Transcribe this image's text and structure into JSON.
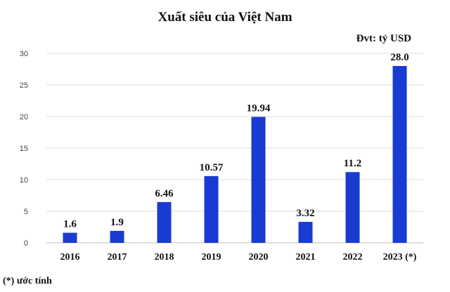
{
  "chart_data": {
    "type": "bar",
    "title": "Xuất siêu của Việt Nam",
    "unit_label": "Đvt: tỷ USD",
    "categories": [
      "2016",
      "2017",
      "2018",
      "2019",
      "2020",
      "2021",
      "2022",
      "2023 (*)"
    ],
    "values": [
      1.6,
      1.9,
      6.46,
      10.57,
      19.94,
      3.32,
      11.2,
      28.0
    ],
    "data_labels": [
      "1.6",
      "1.9",
      "6.46",
      "10.57",
      "19.94",
      "3.32",
      "11.2",
      "28.0"
    ],
    "yticks": [
      "0",
      "5",
      "10",
      "15",
      "20",
      "25",
      "30"
    ],
    "ylim": [
      0,
      30
    ],
    "xlabel": "",
    "ylabel": "",
    "grid": true,
    "bar_color": "#1a3bd1",
    "footnote": "(*) ước tính"
  }
}
